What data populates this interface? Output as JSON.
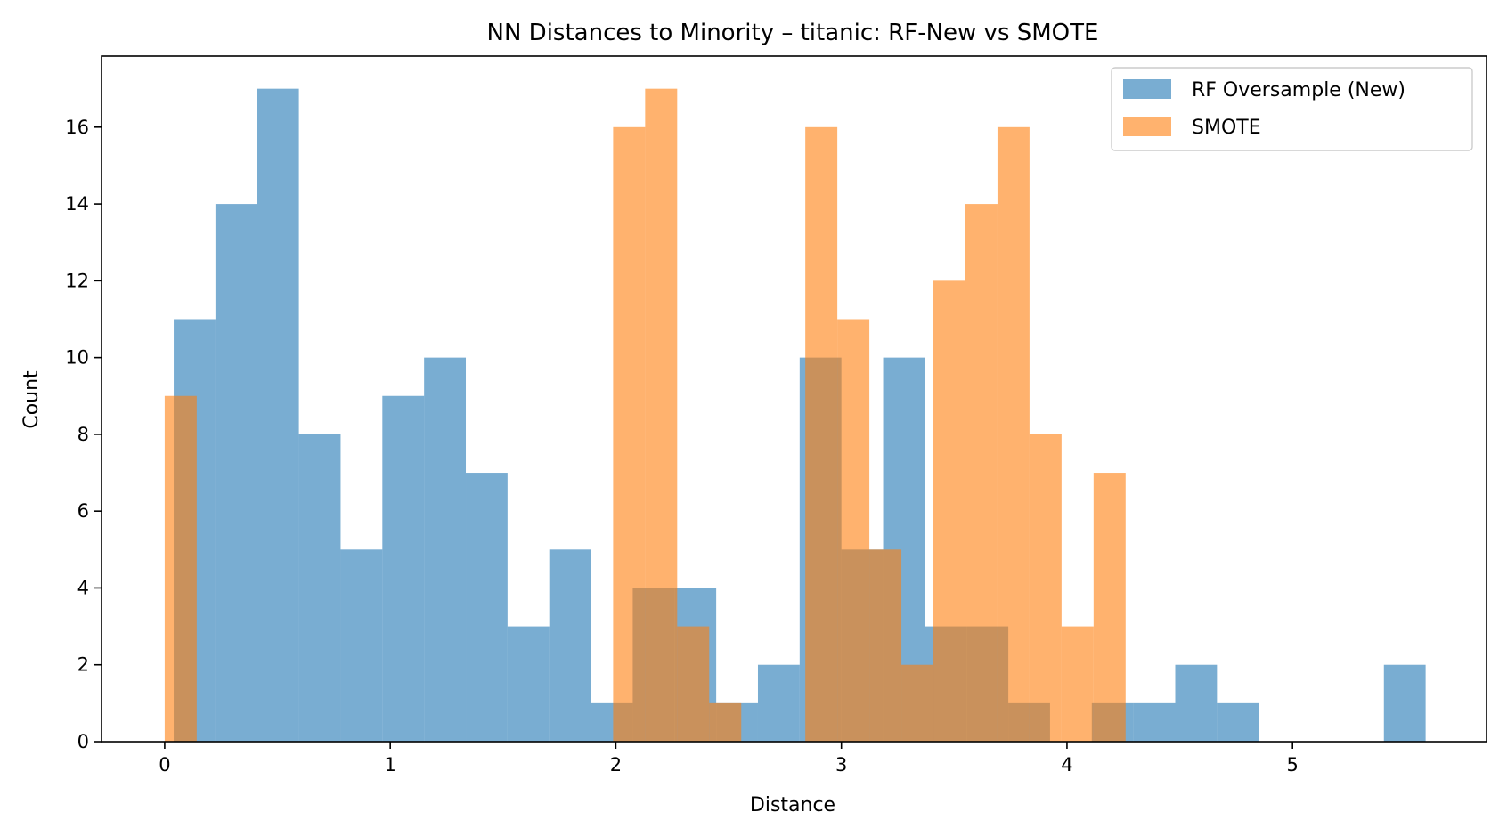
{
  "chart_data": {
    "type": "bar",
    "subtype": "overlapping-histogram",
    "title": "NN Distances to Minority – titanic: RF-New vs SMOTE",
    "xlabel": "Distance",
    "ylabel": "Count",
    "xlim": [
      -0.28,
      5.86
    ],
    "ylim": [
      0,
      17.85
    ],
    "xticks": [
      0,
      1,
      2,
      3,
      4,
      5
    ],
    "yticks": [
      0,
      2,
      4,
      6,
      8,
      10,
      12,
      14,
      16
    ],
    "grid": false,
    "legend_position": "upper right",
    "series": [
      {
        "name": "RF Oversample (New)",
        "color": "#1f77b4",
        "alpha": 0.6,
        "bins": [
          {
            "x0": 0.04,
            "x1": 0.225,
            "count": 11
          },
          {
            "x0": 0.225,
            "x1": 0.41,
            "count": 14
          },
          {
            "x0": 0.41,
            "x1": 0.595,
            "count": 17
          },
          {
            "x0": 0.595,
            "x1": 0.78,
            "count": 8
          },
          {
            "x0": 0.78,
            "x1": 0.965,
            "count": 5
          },
          {
            "x0": 0.965,
            "x1": 1.15,
            "count": 9
          },
          {
            "x0": 1.15,
            "x1": 1.335,
            "count": 10
          },
          {
            "x0": 1.335,
            "x1": 1.52,
            "count": 7
          },
          {
            "x0": 1.52,
            "x1": 1.705,
            "count": 3
          },
          {
            "x0": 1.705,
            "x1": 1.89,
            "count": 5
          },
          {
            "x0": 1.89,
            "x1": 2.075,
            "count": 1
          },
          {
            "x0": 2.075,
            "x1": 2.26,
            "count": 4
          },
          {
            "x0": 2.26,
            "x1": 2.445,
            "count": 4
          },
          {
            "x0": 2.445,
            "x1": 2.63,
            "count": 1
          },
          {
            "x0": 2.63,
            "x1": 2.815,
            "count": 2
          },
          {
            "x0": 2.815,
            "x1": 3.0,
            "count": 10
          },
          {
            "x0": 3.0,
            "x1": 3.185,
            "count": 5
          },
          {
            "x0": 3.185,
            "x1": 3.37,
            "count": 10
          },
          {
            "x0": 3.37,
            "x1": 3.555,
            "count": 3
          },
          {
            "x0": 3.555,
            "x1": 3.74,
            "count": 3
          },
          {
            "x0": 3.74,
            "x1": 3.925,
            "count": 1
          },
          {
            "x0": 3.925,
            "x1": 4.11,
            "count": 0
          },
          {
            "x0": 4.11,
            "x1": 4.295,
            "count": 1
          },
          {
            "x0": 4.295,
            "x1": 4.48,
            "count": 1
          },
          {
            "x0": 4.48,
            "x1": 4.665,
            "count": 2
          },
          {
            "x0": 4.665,
            "x1": 4.85,
            "count": 1
          },
          {
            "x0": 4.85,
            "x1": 5.035,
            "count": 0
          },
          {
            "x0": 5.035,
            "x1": 5.22,
            "count": 0
          },
          {
            "x0": 5.22,
            "x1": 5.405,
            "count": 0
          },
          {
            "x0": 5.405,
            "x1": 5.59,
            "count": 2
          }
        ]
      },
      {
        "name": "SMOTE",
        "color": "#ff7f0e",
        "alpha": 0.6,
        "bins": [
          {
            "x0": 0.0,
            "x1": 0.142,
            "count": 9
          },
          {
            "x0": 0.142,
            "x1": 0.284,
            "count": 0
          },
          {
            "x0": 0.284,
            "x1": 0.426,
            "count": 0
          },
          {
            "x0": 0.426,
            "x1": 0.568,
            "count": 0
          },
          {
            "x0": 0.568,
            "x1": 0.71,
            "count": 0
          },
          {
            "x0": 0.71,
            "x1": 0.852,
            "count": 0
          },
          {
            "x0": 0.852,
            "x1": 0.994,
            "count": 0
          },
          {
            "x0": 0.994,
            "x1": 1.136,
            "count": 0
          },
          {
            "x0": 1.136,
            "x1": 1.278,
            "count": 0
          },
          {
            "x0": 1.278,
            "x1": 1.42,
            "count": 0
          },
          {
            "x0": 1.42,
            "x1": 1.562,
            "count": 0
          },
          {
            "x0": 1.562,
            "x1": 1.704,
            "count": 0
          },
          {
            "x0": 1.704,
            "x1": 1.846,
            "count": 0
          },
          {
            "x0": 1.846,
            "x1": 1.988,
            "count": 0
          },
          {
            "x0": 1.988,
            "x1": 2.13,
            "count": 16
          },
          {
            "x0": 2.13,
            "x1": 2.272,
            "count": 17
          },
          {
            "x0": 2.272,
            "x1": 2.414,
            "count": 3
          },
          {
            "x0": 2.414,
            "x1": 2.556,
            "count": 1
          },
          {
            "x0": 2.556,
            "x1": 2.698,
            "count": 0
          },
          {
            "x0": 2.698,
            "x1": 2.84,
            "count": 0
          },
          {
            "x0": 2.84,
            "x1": 2.982,
            "count": 16
          },
          {
            "x0": 2.982,
            "x1": 3.124,
            "count": 11
          },
          {
            "x0": 3.124,
            "x1": 3.266,
            "count": 5
          },
          {
            "x0": 3.266,
            "x1": 3.408,
            "count": 2
          },
          {
            "x0": 3.408,
            "x1": 3.55,
            "count": 12
          },
          {
            "x0": 3.55,
            "x1": 3.692,
            "count": 14
          },
          {
            "x0": 3.692,
            "x1": 3.834,
            "count": 16
          },
          {
            "x0": 3.834,
            "x1": 3.976,
            "count": 8
          },
          {
            "x0": 3.976,
            "x1": 4.118,
            "count": 3
          },
          {
            "x0": 4.118,
            "x1": 4.26,
            "count": 7
          }
        ]
      }
    ]
  }
}
